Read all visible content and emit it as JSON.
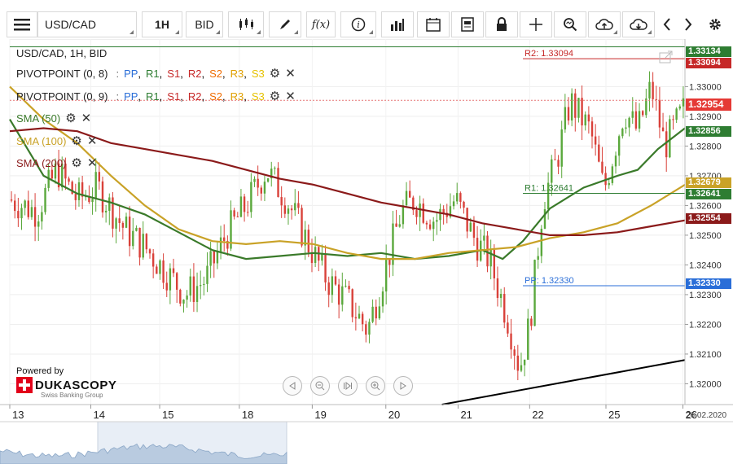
{
  "toolbar": {
    "instrument": "USD/CAD",
    "period": "1H",
    "side": "BID",
    "fx_label": "f(x)"
  },
  "overlay": {
    "instrument_line": "USD/CAD, 1H, BID",
    "pivot1_name": "PIVOTPOINT (0, 8)",
    "pivot2_name": "PIVOTPOINT (0, 9)",
    "pivot_levels": [
      "PP",
      "R1",
      "S1",
      "R2",
      "S2",
      "R3",
      "S3"
    ],
    "pivot_colors": [
      "#2a6ed8",
      "#2e7d32",
      "#c62828",
      "#c62828",
      "#ef6c00",
      "#e0a000",
      "#e6c200"
    ],
    "sma50": "SMA (50)",
    "sma100": "SMA (100)",
    "sma200": "SMA (200)",
    "powered": "Powered by",
    "brand": "DUKASCOPY",
    "brand_sub": "Swiss Banking Group"
  },
  "chart_data": {
    "type": "candlestick",
    "instrument": "USD/CAD",
    "timeframe": "1H",
    "price_side": "BID",
    "y_ticks": [
      1.32,
      1.321,
      1.322,
      1.323,
      1.324,
      1.325,
      1.326,
      1.327,
      1.328,
      1.329,
      1.33
    ],
    "y_tick_labels": [
      "1.32000",
      "1.32100",
      "1.32200",
      "1.32300",
      "1.32400",
      "1.32500",
      "1.32600",
      "1.32700",
      "1.32800",
      "1.32900",
      "1.33000"
    ],
    "x_tick_labels": [
      "13",
      "14",
      "15",
      "18",
      "19",
      "20",
      "21",
      "22",
      "25",
      "26"
    ],
    "end_date_label": "26.02.2020",
    "ylim": [
      1.3193,
      1.3316
    ],
    "price_tags": [
      {
        "label": "1.33134",
        "value": 1.33134,
        "color": "#2e7d32"
      },
      {
        "label": "1.33094",
        "value": 1.33094,
        "color": "#c62828"
      },
      {
        "label": "1.32954",
        "value": 1.32954,
        "color": "#e53935"
      },
      {
        "label": "1.32856",
        "value": 1.32856,
        "color": "#2e7d32"
      },
      {
        "label": "1.32679",
        "value": 1.32679,
        "color": "#c9a227"
      },
      {
        "label": "1.32641",
        "value": 1.32641,
        "color": "#2e7d32"
      },
      {
        "label": "1.32554",
        "value": 1.32554,
        "color": "#8b1a1a"
      },
      {
        "label": "1.32330",
        "value": 1.3233,
        "color": "#2a6ed8"
      }
    ],
    "level_lines": [
      {
        "label": "R2: 1.33094",
        "value": 1.33094,
        "color": "#c62828"
      },
      {
        "label": "R1: 1.32641",
        "value": 1.32641,
        "color": "#2e7d32"
      },
      {
        "label": "PP: 1.32330",
        "value": 1.3233,
        "color": "#2a6ed8"
      }
    ],
    "last_price": 1.32954,
    "sma_series": [
      {
        "name": "SMA (50)",
        "color": "#3a7a2a",
        "points": [
          [
            0,
            1.3289
          ],
          [
            0.05,
            1.327
          ],
          [
            0.1,
            1.3264
          ],
          [
            0.15,
            1.3261
          ],
          [
            0.2,
            1.3257
          ],
          [
            0.25,
            1.3251
          ],
          [
            0.3,
            1.3245
          ],
          [
            0.35,
            1.3242
          ],
          [
            0.4,
            1.3243
          ],
          [
            0.45,
            1.3244
          ],
          [
            0.5,
            1.3243
          ],
          [
            0.55,
            1.3244
          ],
          [
            0.6,
            1.3242
          ],
          [
            0.65,
            1.3243
          ],
          [
            0.7,
            1.3245
          ],
          [
            0.73,
            1.3242
          ],
          [
            0.76,
            1.3248
          ],
          [
            0.8,
            1.3259
          ],
          [
            0.85,
            1.3266
          ],
          [
            0.9,
            1.327
          ],
          [
            0.93,
            1.3272
          ],
          [
            0.96,
            1.3279
          ],
          [
            1.0,
            1.3286
          ]
        ]
      },
      {
        "name": "SMA (100)",
        "color": "#c9a227",
        "points": [
          [
            0,
            1.33
          ],
          [
            0.05,
            1.3289
          ],
          [
            0.1,
            1.3281
          ],
          [
            0.15,
            1.327
          ],
          [
            0.2,
            1.326
          ],
          [
            0.25,
            1.3252
          ],
          [
            0.3,
            1.3248
          ],
          [
            0.35,
            1.3247
          ],
          [
            0.4,
            1.3248
          ],
          [
            0.45,
            1.3247
          ],
          [
            0.5,
            1.3244
          ],
          [
            0.55,
            1.3242
          ],
          [
            0.6,
            1.3242
          ],
          [
            0.65,
            1.3244
          ],
          [
            0.7,
            1.3245
          ],
          [
            0.75,
            1.3246
          ],
          [
            0.8,
            1.3249
          ],
          [
            0.85,
            1.3251
          ],
          [
            0.9,
            1.3254
          ],
          [
            0.95,
            1.326
          ],
          [
            1.0,
            1.3267
          ]
        ]
      },
      {
        "name": "SMA (200)",
        "color": "#8b1a1a",
        "points": [
          [
            0,
            1.3285
          ],
          [
            0.05,
            1.3286
          ],
          [
            0.1,
            1.3285
          ],
          [
            0.15,
            1.3281
          ],
          [
            0.2,
            1.3279
          ],
          [
            0.25,
            1.3277
          ],
          [
            0.3,
            1.3275
          ],
          [
            0.35,
            1.3272
          ],
          [
            0.4,
            1.3269
          ],
          [
            0.45,
            1.3267
          ],
          [
            0.5,
            1.3264
          ],
          [
            0.55,
            1.3261
          ],
          [
            0.6,
            1.3259
          ],
          [
            0.65,
            1.3257
          ],
          [
            0.7,
            1.3254
          ],
          [
            0.75,
            1.3252
          ],
          [
            0.8,
            1.325
          ],
          [
            0.85,
            1.325
          ],
          [
            0.9,
            1.3251
          ],
          [
            0.95,
            1.3253
          ],
          [
            1.0,
            1.3255
          ]
        ]
      }
    ],
    "trendline": {
      "color": "#000000",
      "points": [
        [
          0.64,
          1.3193
        ],
        [
          1.0,
          1.3208
        ]
      ]
    },
    "candles_hint": "approximately 200 hourly candles, green up / red down"
  }
}
